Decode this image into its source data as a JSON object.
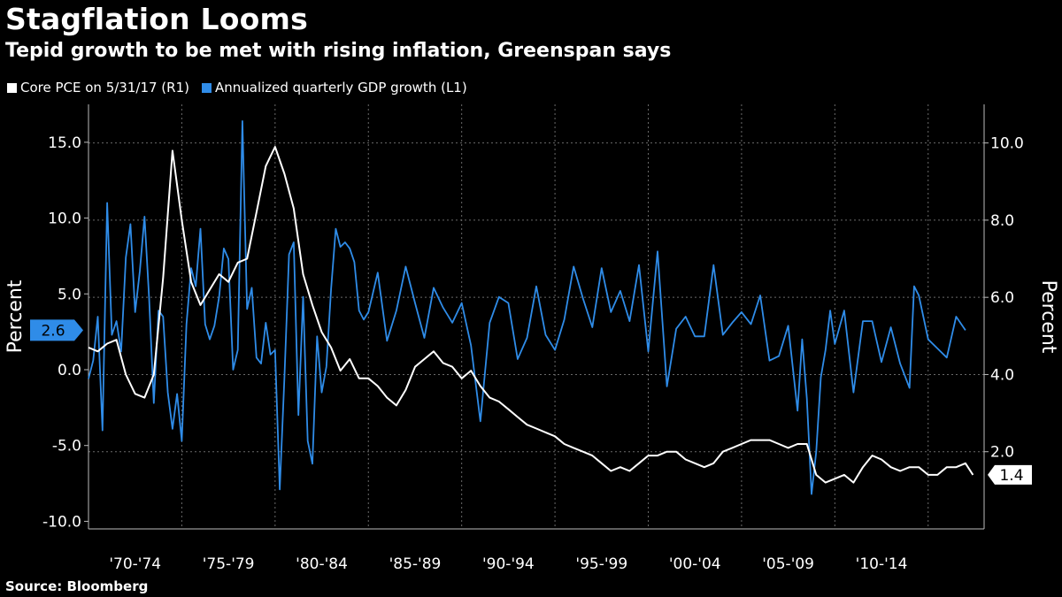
{
  "header": {
    "title": "Stagflation Looms",
    "subtitle": "Tepid growth to be met with rising inflation, Greenspan says"
  },
  "footer": {
    "source": "Source: Bloomberg"
  },
  "colors": {
    "pce": "#ffffff",
    "gdp": "#2f8ce8",
    "grid": "#6a6a6a",
    "background": "#000000"
  },
  "chart_data": {
    "type": "line",
    "legend": [
      "Core PCE on 5/31/17 (R1)",
      "Annualized quarterly GDP growth (L1)"
    ],
    "legend_position": "top-left",
    "grid": true,
    "y_left": {
      "label": "Percent",
      "ticks": [
        "15.0",
        "10.0",
        "5.0",
        "0.0",
        "-5.0",
        "-10.0"
      ],
      "range": [
        -10.5,
        17.5
      ]
    },
    "y_right": {
      "label": "Percent",
      "ticks": [
        "10.0",
        "8.0",
        "6.0",
        "4.0",
        "2.0"
      ],
      "range": [
        0.0,
        11.0
      ]
    },
    "x_range": [
      1970,
      2018
    ],
    "x_ticks": [
      "'70-'74",
      "'75-'79",
      "'80-'84",
      "'85-'89",
      "'90-'94",
      "'95-'99",
      "'00-'04",
      "'05-'09",
      "'10-'14"
    ],
    "last_values": {
      "gdp": "2.6",
      "pce": "1.4"
    },
    "series": [
      {
        "name": "Core PCE on 5/31/17 (R1)",
        "axis": "right",
        "x": [
          1970.0,
          1970.5,
          1971.0,
          1971.5,
          1972.0,
          1972.5,
          1973.0,
          1973.5,
          1974.0,
          1974.5,
          1975.0,
          1975.5,
          1976.0,
          1976.5,
          1977.0,
          1977.5,
          1978.0,
          1978.5,
          1979.0,
          1979.5,
          1980.0,
          1980.5,
          1981.0,
          1981.5,
          1982.0,
          1982.5,
          1983.0,
          1983.5,
          1984.0,
          1984.5,
          1985.0,
          1985.5,
          1986.0,
          1986.5,
          1987.0,
          1987.5,
          1988.0,
          1988.5,
          1989.0,
          1989.5,
          1990.0,
          1990.5,
          1991.0,
          1991.5,
          1992.0,
          1992.5,
          1993.0,
          1993.5,
          1994.0,
          1994.5,
          1995.0,
          1995.5,
          1996.0,
          1996.5,
          1997.0,
          1997.5,
          1998.0,
          1998.5,
          1999.0,
          1999.5,
          2000.0,
          2000.5,
          2001.0,
          2001.5,
          2002.0,
          2002.5,
          2003.0,
          2003.5,
          2004.0,
          2004.5,
          2005.0,
          2005.5,
          2006.0,
          2006.5,
          2007.0,
          2007.5,
          2008.0,
          2008.5,
          2009.0,
          2009.5,
          2010.0,
          2010.5,
          2011.0,
          2011.5,
          2012.0,
          2012.5,
          2013.0,
          2013.5,
          2014.0,
          2014.5,
          2015.0,
          2015.5,
          2016.0,
          2016.5,
          2017.0,
          2017.4
        ],
        "values": [
          4.7,
          4.6,
          4.8,
          4.9,
          4.0,
          3.5,
          3.4,
          4.0,
          6.5,
          9.8,
          8.0,
          6.4,
          5.8,
          6.2,
          6.6,
          6.4,
          6.9,
          7.0,
          8.2,
          9.4,
          9.9,
          9.2,
          8.3,
          6.6,
          5.8,
          5.1,
          4.7,
          4.1,
          4.4,
          3.9,
          3.9,
          3.7,
          3.4,
          3.2,
          3.6,
          4.2,
          4.4,
          4.6,
          4.3,
          4.2,
          3.9,
          4.1,
          3.7,
          3.4,
          3.3,
          3.1,
          2.9,
          2.7,
          2.6,
          2.5,
          2.4,
          2.2,
          2.1,
          2.0,
          1.9,
          1.7,
          1.5,
          1.6,
          1.5,
          1.7,
          1.9,
          1.9,
          2.0,
          2.0,
          1.8,
          1.7,
          1.6,
          1.7,
          2.0,
          2.1,
          2.2,
          2.3,
          2.3,
          2.3,
          2.2,
          2.1,
          2.2,
          2.2,
          1.4,
          1.2,
          1.3,
          1.4,
          1.2,
          1.6,
          1.9,
          1.8,
          1.6,
          1.5,
          1.6,
          1.6,
          1.4,
          1.4,
          1.6,
          1.6,
          1.7,
          1.4
        ]
      },
      {
        "name": "Annualized quarterly GDP growth (L1)",
        "axis": "left",
        "x": [
          1970.0,
          1970.25,
          1970.5,
          1970.75,
          1971.0,
          1971.25,
          1971.5,
          1971.75,
          1972.0,
          1972.25,
          1972.5,
          1972.75,
          1973.0,
          1973.25,
          1973.5,
          1973.75,
          1974.0,
          1974.25,
          1974.5,
          1974.75,
          1975.0,
          1975.25,
          1975.5,
          1975.75,
          1976.0,
          1976.25,
          1976.5,
          1976.75,
          1977.0,
          1977.25,
          1977.5,
          1977.75,
          1978.0,
          1978.25,
          1978.5,
          1978.75,
          1979.0,
          1979.25,
          1979.5,
          1979.75,
          1980.0,
          1980.25,
          1980.5,
          1980.75,
          1981.0,
          1981.25,
          1981.5,
          1981.75,
          1982.0,
          1982.25,
          1982.5,
          1982.75,
          1983.0,
          1983.25,
          1983.5,
          1983.75,
          1984.0,
          1984.25,
          1984.5,
          1984.75,
          1985.0,
          1985.5,
          1986.0,
          1986.5,
          1987.0,
          1987.5,
          1988.0,
          1988.5,
          1989.0,
          1989.5,
          1990.0,
          1990.5,
          1991.0,
          1991.5,
          1992.0,
          1992.5,
          1993.0,
          1993.5,
          1994.0,
          1994.5,
          1995.0,
          1995.5,
          1996.0,
          1996.5,
          1997.0,
          1997.5,
          1998.0,
          1998.5,
          1999.0,
          1999.5,
          2000.0,
          2000.5,
          2001.0,
          2001.5,
          2002.0,
          2002.5,
          2003.0,
          2003.5,
          2004.0,
          2004.5,
          2005.0,
          2005.5,
          2006.0,
          2006.5,
          2007.0,
          2007.5,
          2008.0,
          2008.25,
          2008.5,
          2008.75,
          2009.0,
          2009.25,
          2009.5,
          2009.75,
          2010.0,
          2010.5,
          2011.0,
          2011.5,
          2012.0,
          2012.5,
          2013.0,
          2013.5,
          2014.0,
          2014.25,
          2014.5,
          2015.0,
          2015.5,
          2016.0,
          2016.5,
          2017.0
        ],
        "values": [
          -0.6,
          0.6,
          3.5,
          -4.0,
          11.0,
          2.3,
          3.2,
          1.2,
          7.4,
          9.6,
          3.8,
          6.5,
          10.1,
          4.7,
          -2.2,
          3.9,
          3.5,
          -1.5,
          -3.9,
          -1.6,
          -4.7,
          3.0,
          6.7,
          5.5,
          9.3,
          3.0,
          2.0,
          2.9,
          4.8,
          8.0,
          7.3,
          0.0,
          1.3,
          16.4,
          4.0,
          5.4,
          0.8,
          0.4,
          3.1,
          1.0,
          1.3,
          -7.9,
          -0.5,
          7.6,
          8.4,
          -3.0,
          4.8,
          -4.7,
          -6.2,
          2.2,
          -1.5,
          0.2,
          5.3,
          9.3,
          8.1,
          8.4,
          8.0,
          7.1,
          3.9,
          3.3,
          3.8,
          6.4,
          1.9,
          3.9,
          6.8,
          4.4,
          2.1,
          5.4,
          4.1,
          3.1,
          4.4,
          1.6,
          -3.4,
          3.1,
          4.8,
          4.4,
          0.7,
          2.1,
          5.5,
          2.3,
          1.3,
          3.3,
          6.8,
          4.7,
          2.8,
          6.7,
          3.8,
          5.2,
          3.2,
          6.9,
          1.2,
          7.8,
          -1.1,
          2.7,
          3.5,
          2.2,
          2.2,
          6.9,
          2.3,
          3.1,
          3.8,
          3.0,
          4.9,
          0.6,
          0.9,
          2.9,
          -2.7,
          2.0,
          -1.9,
          -8.2,
          -5.4,
          -0.5,
          1.3,
          3.9,
          1.7,
          3.9,
          -1.5,
          3.2,
          3.2,
          0.5,
          2.8,
          0.4,
          -1.2,
          5.5,
          4.9,
          2.0,
          1.4,
          0.8,
          3.5,
          2.6
        ]
      }
    ]
  }
}
